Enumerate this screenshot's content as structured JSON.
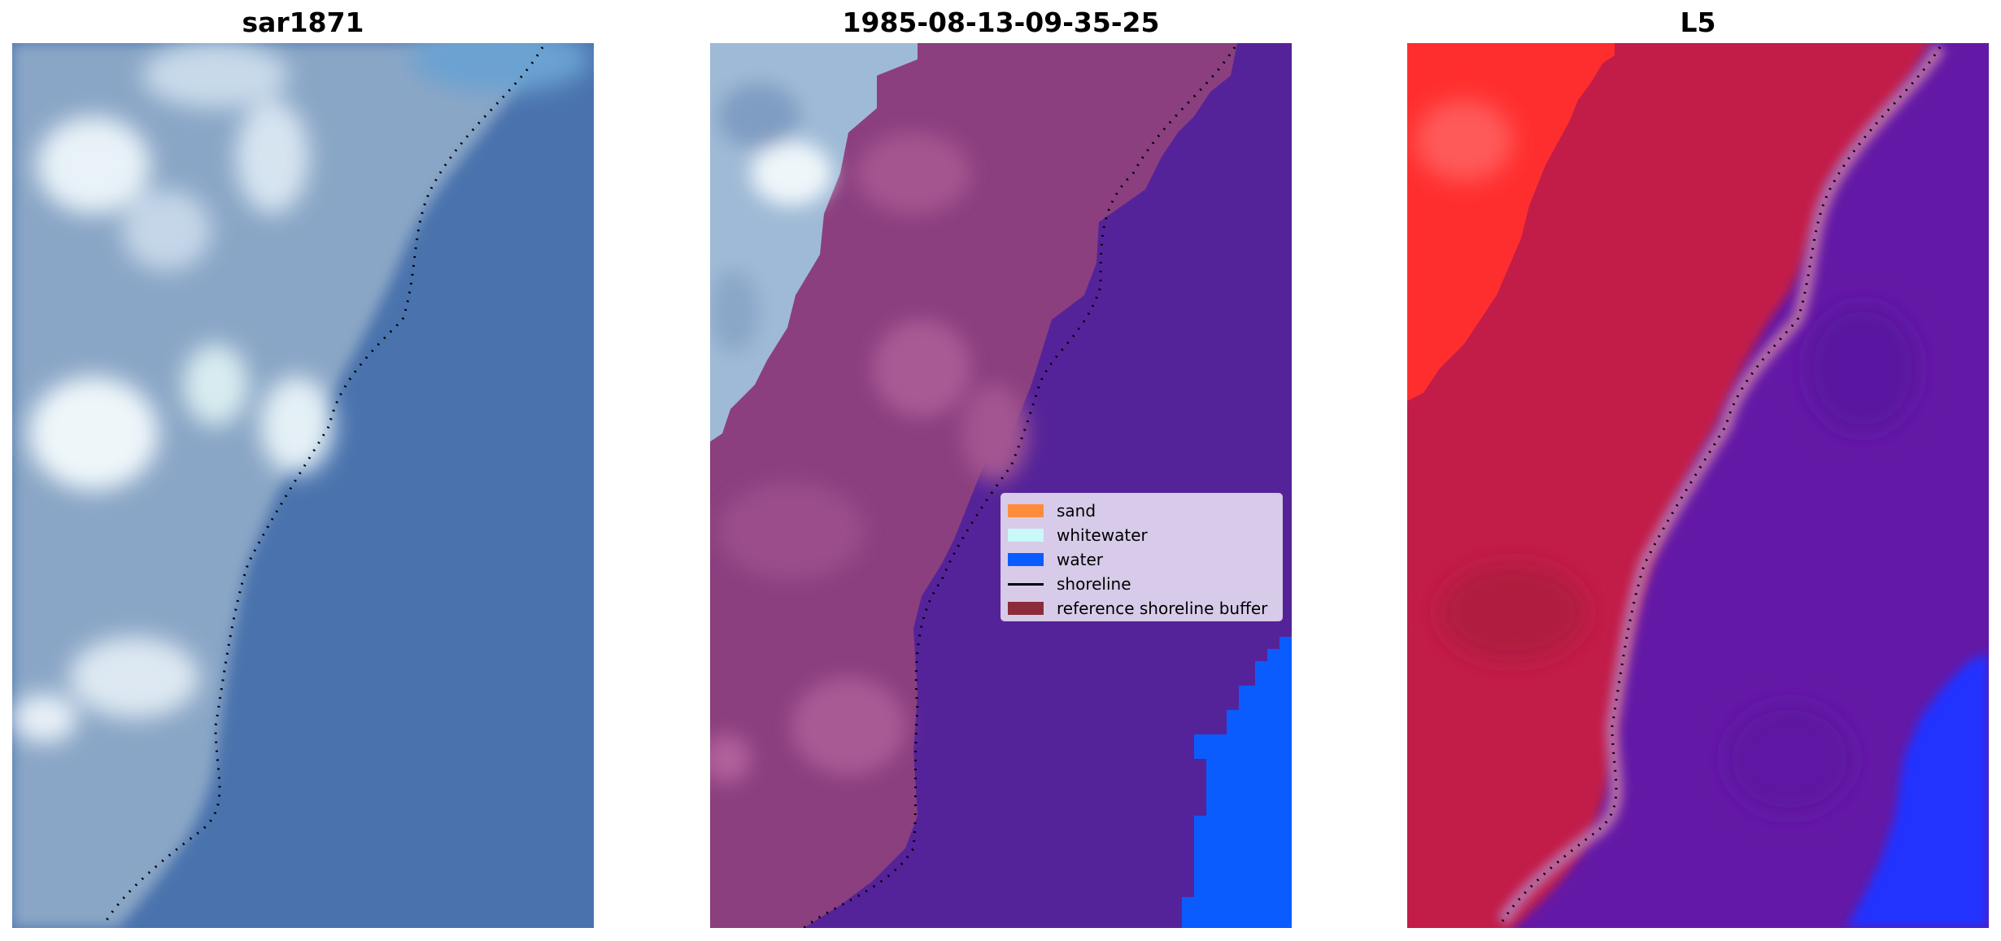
{
  "panels": [
    {
      "title": "sar1871"
    },
    {
      "title": "1985-08-13-09-35-25"
    },
    {
      "title": "L5"
    }
  ],
  "legend": {
    "items": [
      {
        "label": "sand",
        "color": "#ff8c3c",
        "kind": "patch"
      },
      {
        "label": "whitewater",
        "color": "#c8f8f8",
        "kind": "patch"
      },
      {
        "label": "water",
        "color": "#0a5cff",
        "kind": "patch"
      },
      {
        "label": "shoreline",
        "color": "#000000",
        "kind": "line"
      },
      {
        "label": "reference shoreline buffer",
        "color": "#8b2b3b",
        "kind": "patch"
      }
    ]
  },
  "colors": {
    "rgb_water": "#4a73ad",
    "rgb_land": "#8aa6c6",
    "cloud": "#e8f2f8",
    "classified_land": "#8b3f7f",
    "classified_water": "#552399",
    "classified_water_blue": "#0a5cff",
    "false_color_land": "#c21f4a",
    "false_color_bright": "#ff2e2e",
    "false_color_water": "#6419a6",
    "false_color_blue": "#2432ff"
  }
}
